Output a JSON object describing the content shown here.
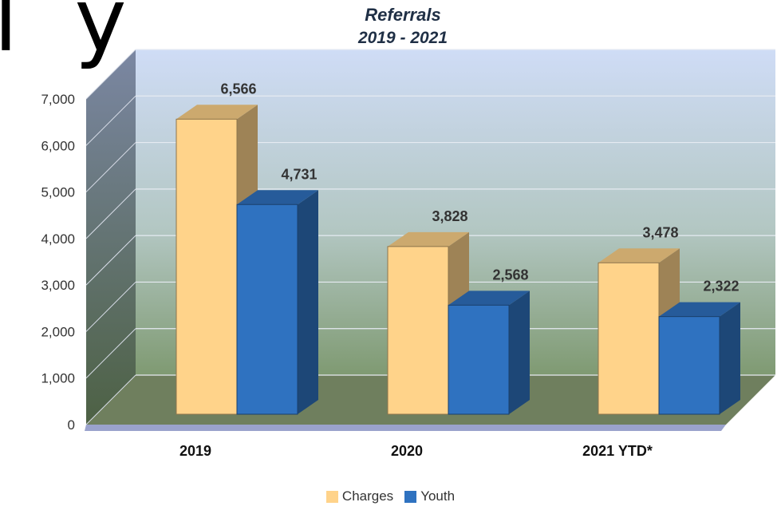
{
  "fragment_text": "l y",
  "chart_data": {
    "type": "bar",
    "title": "Referrals",
    "subtitle": "2019 - 2021",
    "categories": [
      "2019",
      "2020",
      "2021 YTD*"
    ],
    "series": [
      {
        "name": "Charges",
        "values": [
          6566,
          3828,
          3478
        ],
        "color": "#FFD38A"
      },
      {
        "name": "Youth",
        "values": [
          4731,
          2568,
          2322
        ],
        "color": "#2F72C0"
      }
    ],
    "data_labels": [
      [
        "6,566",
        "3,828",
        "3,478"
      ],
      [
        "4,731",
        "2,568",
        "2,322"
      ]
    ],
    "y_ticks": [
      "0",
      "1,000",
      "2,000",
      "3,000",
      "4,000",
      "5,000",
      "6,000",
      "7,000"
    ],
    "ylim": [
      0,
      7000
    ],
    "grid": true,
    "legend_position": "bottom",
    "style": "3d-clustered-column"
  }
}
